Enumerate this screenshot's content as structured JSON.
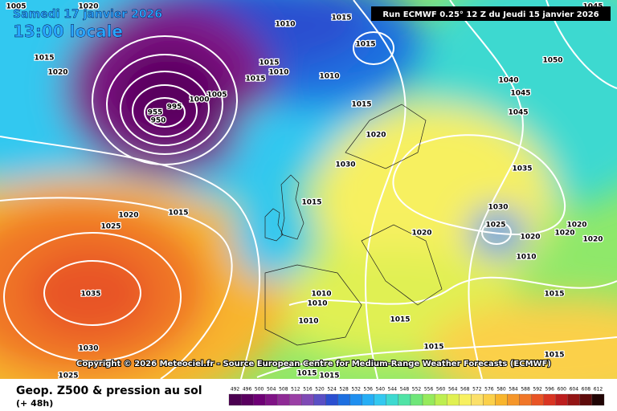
{
  "header": {
    "date": "Samedi 17 janvier 2026",
    "time": "13:00 locale",
    "run": "Run ECMWF 0.25° 12 Z du Jeudi 15 janvier 2026"
  },
  "copyright": "Copyright © 2026 Meteociel.fr - Source European Centre for Medium-Range Weather Forecasts (ECMWF)",
  "footer": {
    "title": "Geop. Z500 & pression au sol",
    "lead": "(+ 48h)"
  },
  "isobar_labels": [
    1005,
    1020,
    1015,
    1010,
    1045,
    1015,
    1020,
    1010,
    1015,
    1050,
    1040,
    1045,
    1045,
    1015,
    1015,
    1010,
    1015,
    1020,
    1030,
    1035,
    1015,
    1030,
    1025,
    1020,
    1020,
    1020,
    1020,
    1010,
    1020,
    1015,
    1010,
    1010,
    1010,
    1015,
    1015,
    1015,
    1020,
    1015,
    1025,
    1035,
    1030,
    1025,
    1015,
    1015,
    955,
    950,
    995,
    1005,
    1000
  ],
  "legend": {
    "values": [
      492,
      496,
      500,
      504,
      508,
      512,
      516,
      520,
      524,
      528,
      532,
      536,
      540,
      544,
      548,
      552,
      556,
      560,
      564,
      568,
      572,
      576,
      580,
      584,
      588,
      592,
      596,
      600,
      604,
      608,
      612
    ],
    "colors": [
      "#4b0050",
      "#5a005f",
      "#6e0075",
      "#7f1385",
      "#8f2a95",
      "#9a3fa5",
      "#7f4ab5",
      "#5a4fc4",
      "#2b4fd0",
      "#1d6fe0",
      "#1f8fef",
      "#26aef5",
      "#33c8f0",
      "#3dd9d0",
      "#50e3a6",
      "#6fe67a",
      "#96ea5c",
      "#bdee50",
      "#e0f052",
      "#f7f060",
      "#fbe06a",
      "#fbd04a",
      "#f8b52d",
      "#f5962a",
      "#f07628",
      "#e85425",
      "#d93522",
      "#bd1e1e",
      "#931414",
      "#5e0b0b",
      "#200505"
    ]
  }
}
